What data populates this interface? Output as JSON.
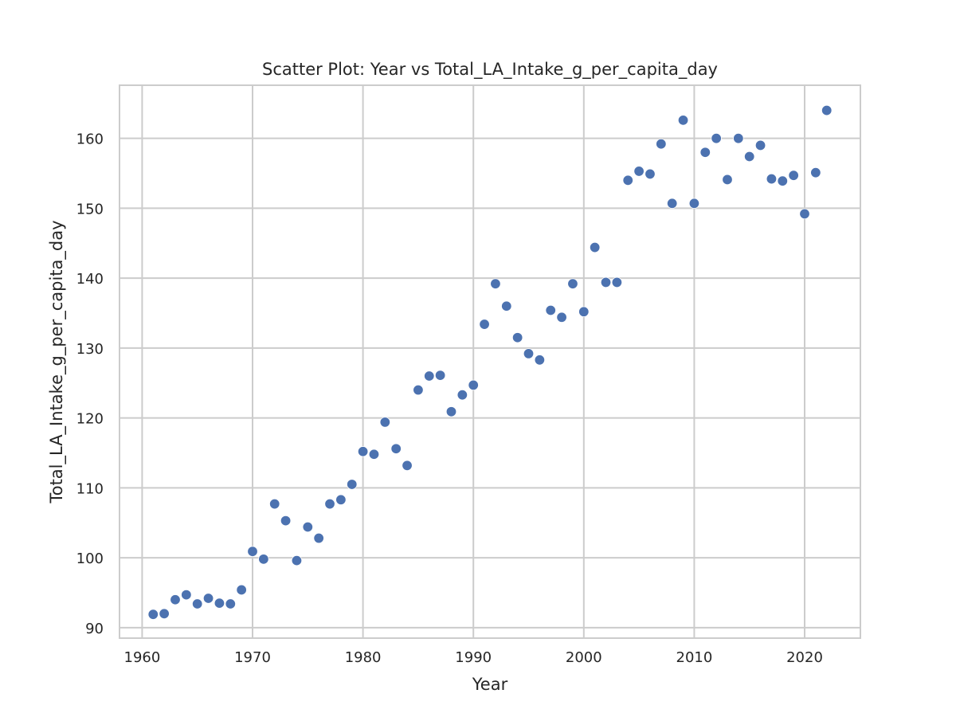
{
  "chart_data": {
    "type": "scatter",
    "title": "Scatter Plot: Year vs Total_LA_Intake_g_per_capita_day",
    "xlabel": "Year",
    "ylabel": "Total_LA_Intake_g_per_capita_day",
    "xlim": [
      1957.95,
      2025.05
    ],
    "ylim": [
      88.5,
      167.6
    ],
    "xticks": [
      1960,
      1970,
      1980,
      1990,
      2000,
      2010,
      2020
    ],
    "yticks": [
      90,
      100,
      110,
      120,
      130,
      140,
      150,
      160
    ],
    "grid": true,
    "point_color": "#4c72b0",
    "grid_color": "#cccccc",
    "x": [
      1961,
      1962,
      1963,
      1964,
      1965,
      1966,
      1967,
      1968,
      1969,
      1970,
      1971,
      1972,
      1973,
      1974,
      1975,
      1976,
      1977,
      1978,
      1979,
      1980,
      1981,
      1982,
      1983,
      1984,
      1985,
      1986,
      1987,
      1988,
      1989,
      1990,
      1991,
      1992,
      1993,
      1994,
      1995,
      1996,
      1997,
      1998,
      1999,
      2000,
      2001,
      2002,
      2003,
      2004,
      2005,
      2006,
      2007,
      2008,
      2009,
      2010,
      2011,
      2012,
      2013,
      2014,
      2015,
      2016,
      2017,
      2018,
      2019,
      2020,
      2021,
      2022
    ],
    "y": [
      91.9,
      92.0,
      94.0,
      94.7,
      93.4,
      94.2,
      93.5,
      93.4,
      95.4,
      100.9,
      99.8,
      107.7,
      105.3,
      99.6,
      104.4,
      102.8,
      107.7,
      108.3,
      110.5,
      115.2,
      114.8,
      119.4,
      115.6,
      113.2,
      124.0,
      126.0,
      126.1,
      120.9,
      123.3,
      124.7,
      133.4,
      139.2,
      136.0,
      131.5,
      129.2,
      128.3,
      135.4,
      134.4,
      139.2,
      135.2,
      144.4,
      139.4,
      139.4,
      154.0,
      155.3,
      154.9,
      159.2,
      150.7,
      162.6,
      150.7,
      158.0,
      160.0,
      154.1,
      160.0,
      157.4,
      159.0,
      154.2,
      153.9,
      154.7,
      149.2,
      155.1,
      164.0
    ]
  }
}
